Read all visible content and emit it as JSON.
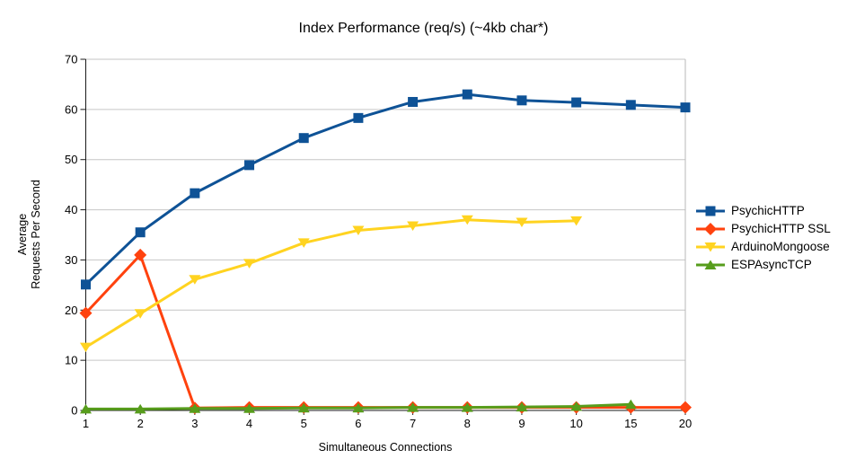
{
  "chart_data": {
    "type": "line",
    "title": "Index Performance (req/s) (~4kb char*)",
    "xlabel": "Simultaneous Connections",
    "ylabel": "Average Requests Per Second",
    "ylabel_lines": [
      "Average",
      "Requests Per Second"
    ],
    "categories": [
      "1",
      "2",
      "3",
      "4",
      "5",
      "6",
      "7",
      "8",
      "9",
      "10",
      "15",
      "20"
    ],
    "ylim": [
      0,
      70
    ],
    "ytick_step": 10,
    "yticks": [
      0,
      10,
      20,
      30,
      40,
      50,
      60,
      70
    ],
    "grid": "horizontal",
    "legend_position": "right",
    "series": [
      {
        "name": "PsychicHTTP",
        "color": "#0e5296",
        "marker": "square",
        "values": [
          25.1,
          35.5,
          43.3,
          48.9,
          54.3,
          58.3,
          61.5,
          63.0,
          61.8,
          61.4,
          60.9,
          60.4
        ]
      },
      {
        "name": "PsychicHTTP SSL",
        "color": "#ff420e",
        "marker": "diamond",
        "values": [
          19.4,
          31.0,
          0.5,
          0.6,
          0.6,
          0.6,
          0.6,
          0.6,
          0.6,
          0.6,
          0.6,
          0.6
        ]
      },
      {
        "name": "ArduinoMongoose",
        "color": "#ffd320",
        "marker": "triangle-down",
        "values": [
          12.6,
          19.3,
          26.1,
          29.3,
          33.4,
          35.9,
          36.8,
          38.0,
          37.5,
          37.8,
          null,
          null
        ]
      },
      {
        "name": "ESPAsyncTCP",
        "color": "#579d1c",
        "marker": "triangle-up",
        "values": [
          0.3,
          0.3,
          0.4,
          0.4,
          0.5,
          0.5,
          0.6,
          0.6,
          0.7,
          0.8,
          1.2,
          null
        ]
      }
    ],
    "colors": {
      "background": "#ffffff",
      "grid": "#c6c6c6",
      "plot_border": "#b9b9b9",
      "axis": "#1a1a1a",
      "text": "#000000"
    }
  }
}
